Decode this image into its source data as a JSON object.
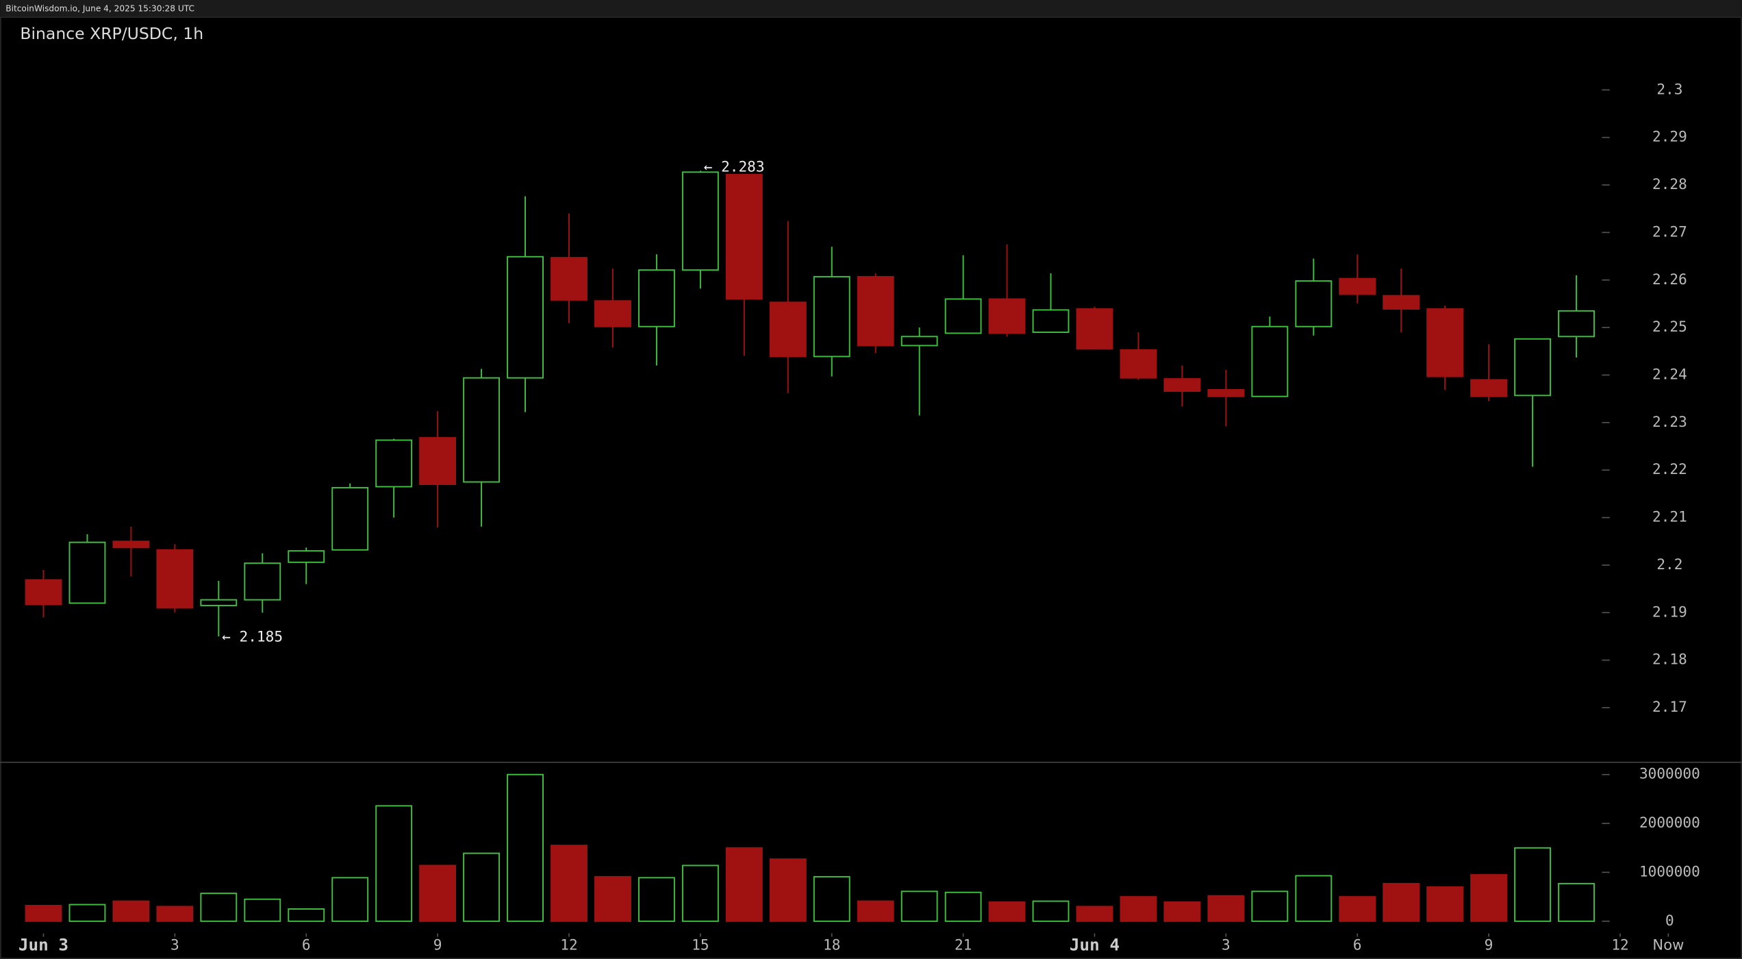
{
  "chart_data": {
    "type": "candlestick",
    "header": "BitcoinWisdom.io, June 4, 2025 15:30:28 UTC",
    "title": "Binance XRP/USDC, 1h",
    "x": [
      0,
      1,
      2,
      3,
      4,
      5,
      6,
      7,
      8,
      9,
      10,
      11,
      12,
      13,
      14,
      15,
      16,
      17,
      18,
      19,
      20,
      21,
      22,
      23,
      24,
      25,
      26,
      27,
      28,
      29,
      30,
      31,
      32,
      33,
      34,
      35
    ],
    "open": [
      2.1969,
      2.192,
      2.205,
      2.2032,
      2.1915,
      2.1927,
      2.2006,
      2.2032,
      2.2165,
      2.2268,
      2.2175,
      2.2394,
      2.2647,
      2.2556,
      2.2502,
      2.2621,
      2.2822,
      2.2553,
      2.2439,
      2.2607,
      2.2462,
      2.2488,
      2.256,
      2.249,
      2.2539,
      2.2453,
      2.2392,
      2.2369,
      2.2355,
      2.2502,
      2.2603,
      2.2567,
      2.2539,
      2.239,
      2.2357,
      2.2481
    ],
    "high": [
      2.199,
      2.2065,
      2.2081,
      2.2044,
      2.1967,
      2.2025,
      2.2037,
      2.2172,
      2.2266,
      2.2324,
      2.2413,
      2.2776,
      2.274,
      2.2624,
      2.2654,
      2.283,
      2.2822,
      2.2724,
      2.267,
      2.2614,
      2.25,
      2.2652,
      2.2675,
      2.2614,
      2.2544,
      2.249,
      2.242,
      2.2411,
      2.2523,
      2.2645,
      2.2654,
      2.2624,
      2.2546,
      2.2465,
      2.2476,
      2.261
    ],
    "low": [
      2.189,
      2.192,
      2.1976,
      2.19,
      2.185,
      2.19,
      2.196,
      2.2032,
      2.21,
      2.2079,
      2.2081,
      2.2322,
      2.2509,
      2.2458,
      2.242,
      2.2582,
      2.2441,
      2.2362,
      2.2397,
      2.2446,
      2.2315,
      2.2488,
      2.2481,
      2.249,
      2.2455,
      2.239,
      2.2334,
      2.2292,
      2.2355,
      2.2483,
      2.2551,
      2.249,
      2.2369,
      2.2345,
      2.2207,
      2.2437
    ],
    "close": [
      2.1917,
      2.2048,
      2.2037,
      2.191,
      2.1927,
      2.2004,
      2.203,
      2.2163,
      2.2263,
      2.217,
      2.2394,
      2.2649,
      2.2558,
      2.2502,
      2.2621,
      2.2827,
      2.256,
      2.2439,
      2.2607,
      2.2462,
      2.2481,
      2.256,
      2.2488,
      2.2537,
      2.2455,
      2.2394,
      2.2366,
      2.2355,
      2.2502,
      2.2598,
      2.257,
      2.2539,
      2.2397,
      2.2355,
      2.2476,
      2.2535
    ],
    "up_color": "#3fbf3f",
    "down_color": "#a01212",
    "xlim": [
      -0.99,
      38.78
    ],
    "xticks": [
      {
        "value": 0,
        "label": "Jun 3"
      },
      3,
      6,
      9,
      12,
      15,
      18,
      21,
      {
        "value": 24,
        "label": "Jun 4"
      },
      {
        "value": 27,
        "label": "3"
      },
      {
        "value": 30,
        "label": "6"
      },
      {
        "value": 33,
        "label": "9"
      },
      {
        "value": 36,
        "label": "12"
      },
      {
        "value": 37.1,
        "label": "Now"
      }
    ],
    "ylim": [
      2.1585,
      2.3084
    ],
    "yticks": [
      2.17,
      2.18,
      2.19,
      2.2,
      2.21,
      2.22,
      2.23,
      2.24,
      2.25,
      2.26,
      2.27,
      2.28,
      2.29,
      2.3
    ],
    "annotations": [
      {
        "text": "← 2.283"
      },
      {
        "text": "← 2.185"
      }
    ],
    "volume": {
      "values": [
        320000,
        340000,
        410000,
        300000,
        570000,
        450000,
        250000,
        890000,
        2360000,
        1140000,
        1390000,
        3000000,
        1550000,
        910000,
        890000,
        1140000,
        1500000,
        1270000,
        910000,
        410000,
        610000,
        590000,
        390000,
        410000,
        300000,
        500000,
        390000,
        520000,
        610000,
        930000,
        500000,
        770000,
        700000,
        950000,
        1500000,
        770000
      ],
      "ylim": [
        -250000,
        3250000
      ],
      "yticks": [
        0,
        1000000,
        2000000,
        3000000
      ]
    }
  }
}
